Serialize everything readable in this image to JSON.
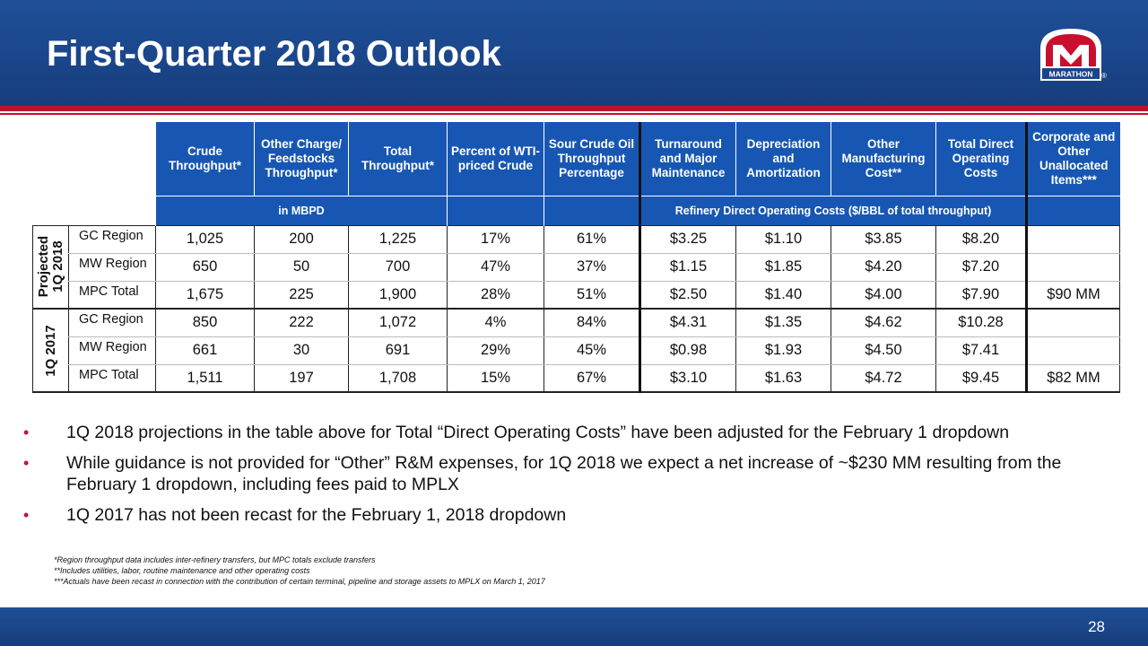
{
  "header": {
    "title": "First-Quarter 2018 Outlook",
    "logo_text": "MARATHON",
    "logo_registered": "®",
    "brand_blue": "#1f4f97",
    "brand_red": "#b8152f"
  },
  "table": {
    "columns": [
      "Crude Throughput*",
      "Other Charge/ Feedstocks Throughput*",
      "Total Throughput*",
      "Percent of WTI-priced Crude",
      "Sour Crude Oil Throughput Percentage",
      "Turnaround and Major Maintenance",
      "Depreciation and Amortization",
      "Other Manufacturing Cost**",
      "Total Direct Operating Costs",
      "Corporate and Other Unallocated Items***"
    ],
    "subheaders": {
      "volume": "in MBPD",
      "costs": "Refinery Direct Operating Costs ($/BBL of total throughput)"
    },
    "groups": [
      {
        "label": "Projected 1Q 2018",
        "rows": [
          {
            "name": "GC Region",
            "values": [
              "1,025",
              "200",
              "1,225",
              "17%",
              "61%",
              "$3.25",
              "$1.10",
              "$3.85",
              "$8.20",
              ""
            ]
          },
          {
            "name": "MW Region",
            "values": [
              "650",
              "50",
              "700",
              "47%",
              "37%",
              "$1.15",
              "$1.85",
              "$4.20",
              "$7.20",
              ""
            ]
          },
          {
            "name": "MPC Total",
            "values": [
              "1,675",
              "225",
              "1,900",
              "28%",
              "51%",
              "$2.50",
              "$1.40",
              "$4.00",
              "$7.90",
              "$90 MM"
            ]
          }
        ]
      },
      {
        "label": "1Q 2017",
        "rows": [
          {
            "name": "GC Region",
            "values": [
              "850",
              "222",
              "1,072",
              "4%",
              "84%",
              "$4.31",
              "$1.35",
              "$4.62",
              "$10.28",
              ""
            ]
          },
          {
            "name": "MW Region",
            "values": [
              "661",
              "30",
              "691",
              "29%",
              "45%",
              "$0.98",
              "$1.93",
              "$4.50",
              "$7.41",
              ""
            ]
          },
          {
            "name": "MPC Total",
            "values": [
              "1,511",
              "197",
              "1,708",
              "15%",
              "67%",
              "$3.10",
              "$1.63",
              "$4.72",
              "$9.45",
              "$82 MM"
            ]
          }
        ]
      }
    ]
  },
  "bullets": [
    "1Q 2018 projections in the table above for Total “Direct Operating Costs” have been adjusted for the February 1 dropdown",
    "While guidance is not provided for “Other” R&M expenses, for 1Q 2018 we expect a net increase of ~$230 MM resulting from the February 1 dropdown, including fees paid to MPLX",
    "1Q 2017 has not been recast for the February 1, 2018 dropdown"
  ],
  "footnotes": [
    "*Region throughput data includes inter-refinery transfers, but MPC totals exclude transfers",
    "**Includes utilities, labor, routine maintenance and other operating costs",
    "***Actuals have been recast in connection with the contribution of certain terminal, pipeline and storage assets to MPLX on March 1, 2017"
  ],
  "footer": {
    "page_number": "28"
  }
}
